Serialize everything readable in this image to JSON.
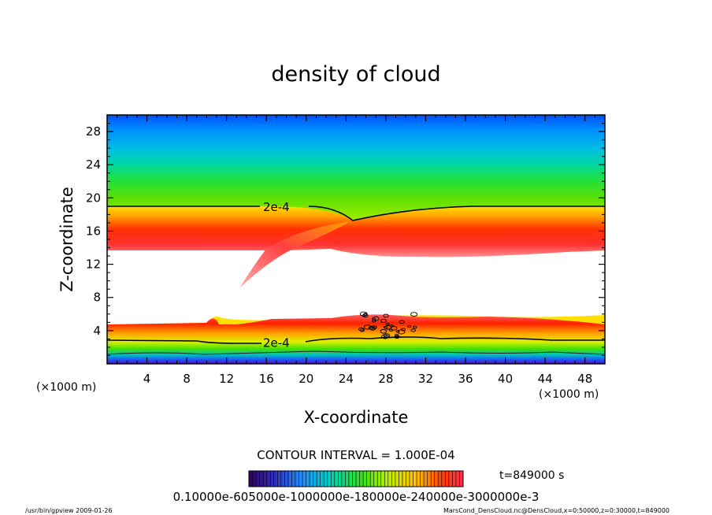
{
  "chart_data": {
    "type": "heatmap",
    "title": "density of cloud",
    "xlabel": "X-coordinate",
    "ylabel": "Z-coordinate",
    "x_unit_left": "(×1000 m)",
    "x_unit_right": "(×1000 m)",
    "xlim": [
      0,
      50
    ],
    "ylim": [
      0,
      30
    ],
    "x_ticks": [
      4,
      8,
      12,
      16,
      20,
      24,
      28,
      32,
      36,
      40,
      44,
      48
    ],
    "y_ticks": [
      4,
      8,
      12,
      16,
      20,
      24,
      28
    ],
    "contour_interval": "CONTOUR INTERVAL = 1.000E-04",
    "time_label": "t=849000 s",
    "contour_labels": [
      {
        "text": "2e-4",
        "x": 17.0,
        "z": 18.9
      },
      {
        "text": "2e-4",
        "x": 17.0,
        "z": 2.5
      }
    ],
    "upper_band": {
      "cloud_base_z": 13.6,
      "contour_2e4_z": 18.9,
      "red_core_z": 15.4,
      "plume_tip": {
        "x": 13.3,
        "z": 9.0
      }
    },
    "lower_band": {
      "top_z": 5.0,
      "contour_2e4_z": 2.8
    },
    "colorbar": {
      "range": [
        0.0,
        0.0007
      ],
      "tick_labels": "0.10000e-605000e-1000000e-180000e-240000e-3000000e-3"
    }
  },
  "footer": {
    "left": "/usr/bin/gpview   2009-01-26",
    "right": "MarsCond_DensCloud.nc@DensCloud,x=0:50000,z=0:30000,t=849000"
  }
}
